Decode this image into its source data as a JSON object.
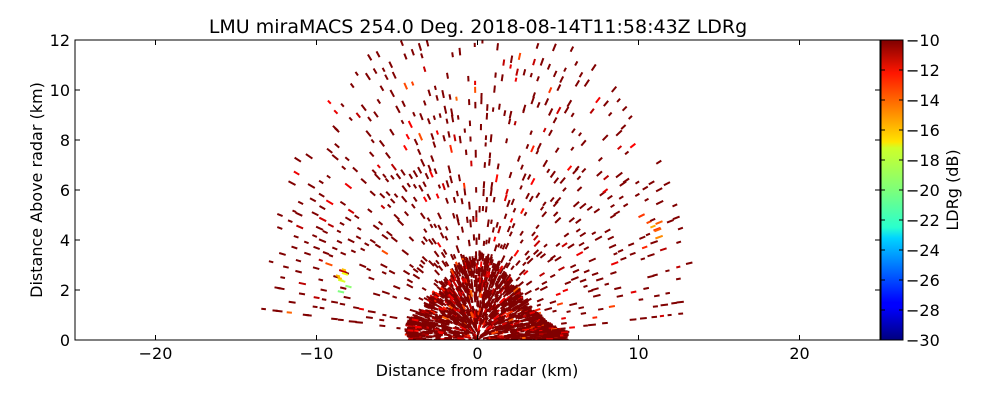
{
  "chart_data": {
    "type": "heatmap",
    "title": "LMU miraMACS 254.0 Deg. 2018-08-14T11:58:43Z  LDRg",
    "xlabel": "Distance from radar (km)",
    "ylabel": "Distance Above radar  (km)",
    "xlim": [
      -25,
      25
    ],
    "ylim": [
      0,
      12
    ],
    "x_ticks": [
      -20,
      -10,
      0,
      10,
      20
    ],
    "y_ticks": [
      0,
      2,
      4,
      6,
      8,
      10,
      12
    ],
    "x_tick_labels": [
      "−20",
      "−10",
      "0",
      "10",
      "20"
    ],
    "y_tick_labels": [
      "0",
      "2",
      "4",
      "6",
      "8",
      "10",
      "12"
    ],
    "grid": false,
    "colorbar": {
      "label": "LDRg (dB)",
      "range": [
        -30,
        -10
      ],
      "ticks": [
        -30,
        -28,
        -26,
        -24,
        -22,
        -20,
        -18,
        -16,
        -14,
        -12,
        -10
      ],
      "tick_labels": [
        "−30",
        "−28",
        "−26",
        "−24",
        "−22",
        "−20",
        "−18",
        "−16",
        "−14",
        "−12",
        "−10"
      ],
      "colormap": "jet"
    },
    "description_of_field": {
      "scan_type": "RHI-like polar scan, echoes confined to semicircle of ~13.5 km radius",
      "dominant_value_dB": -10,
      "dense_region": {
        "x_range_km": [
          -4,
          5
        ],
        "y_range_km": [
          0,
          3.5
        ]
      },
      "sparse_region_max_range_km": 13.5,
      "low_ldr_patches": [
        {
          "x_km": -8.2,
          "y_km": 2.2,
          "value_dB": -19
        },
        {
          "x_km": -8.5,
          "y_km": 2.6,
          "value_dB": -17
        },
        {
          "x_km": 11,
          "y_km": 4.4,
          "value_dB": -15
        }
      ]
    }
  }
}
